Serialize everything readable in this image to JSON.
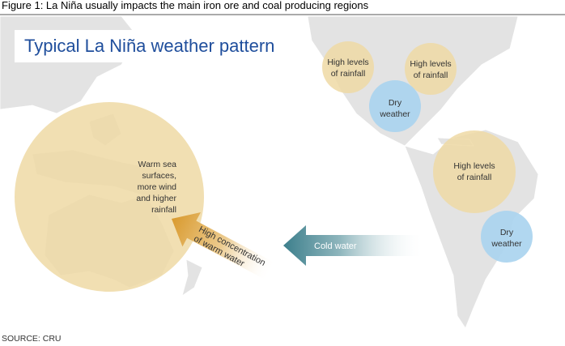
{
  "header": {
    "title": "Figure 1: La Niña usually impacts the main iron ore and coal producing regions"
  },
  "map": {
    "title": "Typical La Niña weather pattern",
    "regions": [
      {
        "lines": [
          "Warm sea",
          "surfaces,",
          "more wind",
          "and higher",
          "rainfall"
        ]
      },
      {
        "lines": [
          "High levels",
          "of rainfall"
        ]
      },
      {
        "lines": [
          "High levels",
          "of rainfall"
        ]
      },
      {
        "lines": [
          "Dry",
          "weather"
        ]
      },
      {
        "lines": [
          "High levels",
          "of rainfall"
        ]
      },
      {
        "lines": [
          "Dry",
          "weather"
        ]
      }
    ],
    "currents": [
      {
        "lines": [
          "Cold water"
        ]
      },
      {
        "lines": [
          "High concentration",
          "of warm water"
        ]
      }
    ]
  },
  "footer": {
    "source": "SOURCE: CRU"
  }
}
